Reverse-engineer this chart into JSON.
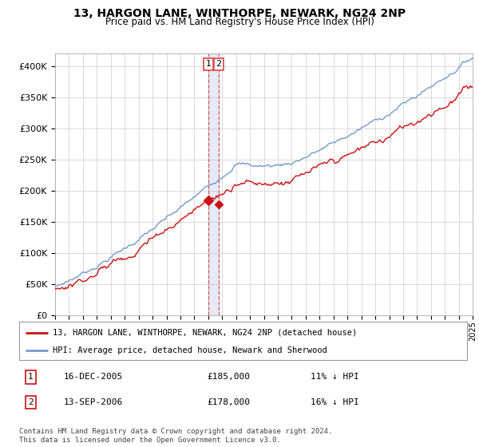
{
  "title": "13, HARGON LANE, WINTHORPE, NEWARK, NG24 2NP",
  "subtitle": "Price paid vs. HM Land Registry's House Price Index (HPI)",
  "ylim": [
    0,
    420000
  ],
  "yticks": [
    0,
    50000,
    100000,
    150000,
    200000,
    250000,
    300000,
    350000,
    400000
  ],
  "ytick_labels": [
    "£0",
    "£50K",
    "£100K",
    "£150K",
    "£200K",
    "£250K",
    "£300K",
    "£350K",
    "£400K"
  ],
  "hpi_color": "#7799cc",
  "price_color": "#cc1111",
  "vline_color": "#dd4444",
  "marker1_month": 132,
  "marker2_month": 141,
  "marker1_price": 185000,
  "marker2_price": 178000,
  "legend_line1": "13, HARGON LANE, WINTHORPE, NEWARK, NG24 2NP (detached house)",
  "legend_line2": "HPI: Average price, detached house, Newark and Sherwood",
  "table_row1": [
    "1",
    "16-DEC-2005",
    "£185,000",
    "11% ↓ HPI"
  ],
  "table_row2": [
    "2",
    "13-SEP-2006",
    "£178,000",
    "16% ↓ HPI"
  ],
  "footnote": "Contains HM Land Registry data © Crown copyright and database right 2024.\nThis data is licensed under the Open Government Licence v3.0.",
  "background_color": "#ffffff",
  "grid_color": "#cccccc",
  "n_months": 361,
  "year_start": 1995,
  "year_end": 2025
}
